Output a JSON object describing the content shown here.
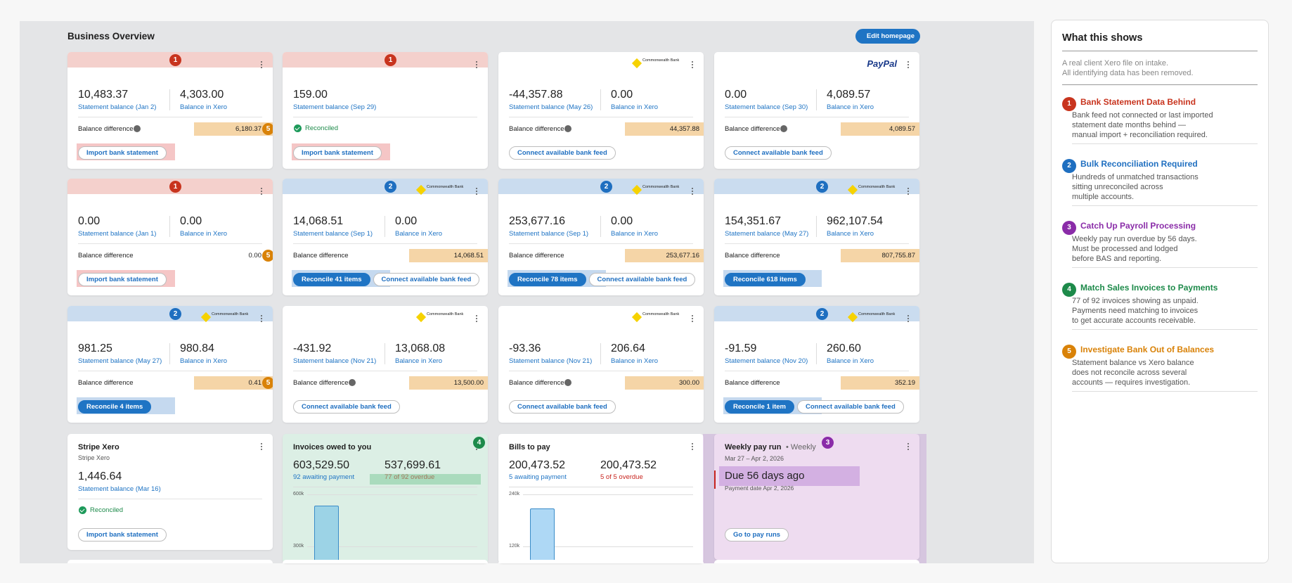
{
  "header": {
    "title": "Business Overview",
    "edit_button": "Edit homepage"
  },
  "bank_cards": [
    {
      "alert": "red",
      "badge": 1,
      "statement_balance": "10,483.37",
      "statement_label": "Statement balance (Jan 2)",
      "xero_balance": "4,303.00",
      "xero_label": "Balance in Xero",
      "difference_label": "Balance difference",
      "info": true,
      "difference": "6,180.37",
      "difference_flagged": true,
      "difference_badge": 5,
      "buttons": [
        "Import bank statement"
      ]
    },
    {
      "alert": "red",
      "badge": 1,
      "statement_balance": "159.00",
      "statement_label": "Statement balance (Sep 29)",
      "reconciled": "Reconciled",
      "buttons": [
        "Import bank statement"
      ]
    },
    {
      "logo": "Commonwealth Bank",
      "statement_balance": "-44,357.88",
      "statement_label": "Statement balance (May 26)",
      "xero_balance": "0.00",
      "xero_label": "Balance in Xero",
      "difference_label": "Balance difference",
      "info": true,
      "difference": "44,357.88",
      "difference_flagged": true,
      "buttons": [
        "Connect available bank feed"
      ]
    },
    {
      "logo": "PayPal",
      "statement_balance": "0.00",
      "statement_label": "Statement balance (Sep 30)",
      "xero_balance": "4,089.57",
      "xero_label": "Balance in Xero",
      "difference_label": "Balance difference",
      "info": true,
      "difference": "4,089.57",
      "difference_flagged": true,
      "buttons": [
        "Connect available bank feed"
      ]
    },
    {
      "alert": "red",
      "badge": 1,
      "statement_balance": "0.00",
      "statement_label": "Statement balance (Jan 1)",
      "xero_balance": "0.00",
      "xero_label": "Balance in Xero",
      "difference_label": "Balance difference",
      "difference": "0.00",
      "difference_badge": 5,
      "buttons": [
        "Import bank statement"
      ]
    },
    {
      "alert": "blue",
      "badge": 2,
      "logo": "Commonwealth Bank",
      "statement_balance": "14,068.51",
      "statement_label": "Statement balance (Sep 1)",
      "xero_balance": "0.00",
      "xero_label": "Balance in Xero",
      "difference_label": "Balance difference",
      "difference": "14,068.51",
      "difference_flagged": true,
      "buttons": [
        "Reconcile 41 items",
        "Connect available bank feed"
      ]
    },
    {
      "alert": "blue",
      "badge": 2,
      "logo": "Commonwealth Bank",
      "statement_balance": "253,677.16",
      "statement_label": "Statement balance (Sep 1)",
      "xero_balance": "0.00",
      "xero_label": "Balance in Xero",
      "difference_label": "Balance difference",
      "difference": "253,677.16",
      "difference_flagged": true,
      "buttons": [
        "Reconcile 78 items",
        "Connect available bank feed"
      ]
    },
    {
      "alert": "blue",
      "badge": 2,
      "logo": "Commonwealth Bank",
      "statement_balance": "154,351.67",
      "statement_label": "Statement balance (May 27)",
      "xero_balance": "962,107.54",
      "xero_label": "Balance in Xero",
      "difference_label": "Balance difference",
      "difference": "807,755.87",
      "difference_flagged": true,
      "buttons": [
        "Reconcile 618 items"
      ]
    },
    {
      "alert": "blue",
      "badge": 2,
      "logo": "Commonwealth Bank",
      "statement_balance": "981.25",
      "statement_label": "Statement balance (May 27)",
      "xero_balance": "980.84",
      "xero_label": "Balance in Xero",
      "difference_label": "Balance difference",
      "difference": "0.41",
      "difference_flagged": true,
      "difference_badge": 5,
      "buttons": [
        "Reconcile 4 items"
      ]
    },
    {
      "logo": "Commonwealth Bank",
      "statement_balance": "-431.92",
      "statement_label": "Statement balance (Nov 21)",
      "xero_balance": "13,068.08",
      "xero_label": "Balance in Xero",
      "difference_label": "Balance difference",
      "info": true,
      "difference": "13,500.00",
      "difference_flagged": true,
      "buttons": [
        "Connect available bank feed"
      ]
    },
    {
      "logo": "Commonwealth Bank",
      "statement_balance": "-93.36",
      "statement_label": "Statement balance (Nov 21)",
      "xero_balance": "206.64",
      "xero_label": "Balance in Xero",
      "difference_label": "Balance difference",
      "info": true,
      "difference": "300.00",
      "difference_flagged": true,
      "buttons": [
        "Connect available bank feed"
      ]
    },
    {
      "alert": "blue",
      "badge": 2,
      "logo": "Commonwealth Bank",
      "statement_balance": "-91.59",
      "statement_label": "Statement balance (Nov 20)",
      "xero_balance": "260.60",
      "xero_label": "Balance in Xero",
      "difference_label": "Balance difference",
      "difference": "352.19",
      "difference_flagged": true,
      "buttons": [
        "Reconcile 1 item",
        "Connect available bank feed"
      ]
    }
  ],
  "stripe_card": {
    "title": "Stripe Xero",
    "subtitle": "Stripe Xero",
    "statement_balance": "1,446.64",
    "statement_label": "Statement balance (Mar 16)",
    "reconciled": "Reconciled",
    "button": "Import bank statement"
  },
  "invoices_card": {
    "badge": 4,
    "title": "Invoices owed to you",
    "awaiting": "603,529.50",
    "awaiting_label": "92 awaiting payment",
    "overdue": "537,699.61",
    "overdue_label": "77 of 92 overdue",
    "axis_labels": [
      "600k",
      "300k"
    ]
  },
  "bills_card": {
    "title": "Bills to pay",
    "awaiting": "200,473.52",
    "awaiting_label": "5 awaiting payment",
    "overdue": "200,473.52",
    "overdue_label": "5 of 5 overdue",
    "axis_labels": [
      "240k",
      "120k"
    ]
  },
  "payrun_card": {
    "badge": 3,
    "title": "Weekly pay run",
    "frequency": "• Weekly",
    "period": "Mar 27 – Apr 2, 2026",
    "due": "Due 56 days ago",
    "payment_date": "Payment date Apr 2, 2026",
    "button": "Go to pay runs"
  },
  "panel": {
    "title": "What this shows",
    "intro": [
      "A real client Xero file on intake.",
      "All identifying data has been removed."
    ],
    "items": [
      {
        "number": 1,
        "title": "Bank Statement Data Behind",
        "description": [
          "Bank feed not connected or last imported",
          "statement date months behind —",
          "manual import + reconciliation required."
        ]
      },
      {
        "number": 2,
        "title": "Bulk Reconciliation Required",
        "description": [
          "Hundreds of unmatched transactions",
          "sitting unreconciled across",
          "multiple accounts."
        ]
      },
      {
        "number": 3,
        "title": "Catch Up Payroll Processing",
        "description": [
          "Weekly pay run overdue by 56 days.",
          "Must be processed and lodged",
          "before BAS and reporting."
        ]
      },
      {
        "number": 4,
        "title": "Match Sales Invoices to Payments",
        "description": [
          "77 of 92 invoices showing as unpaid.",
          "Payments need matching to invoices",
          "to get accurate accounts receivable."
        ]
      },
      {
        "number": 5,
        "title": "Investigate Bank Out of Balances",
        "description": [
          "Statement balance vs Xero balance",
          "does not reconcile across several",
          "accounts — requires investigation."
        ]
      }
    ]
  }
}
